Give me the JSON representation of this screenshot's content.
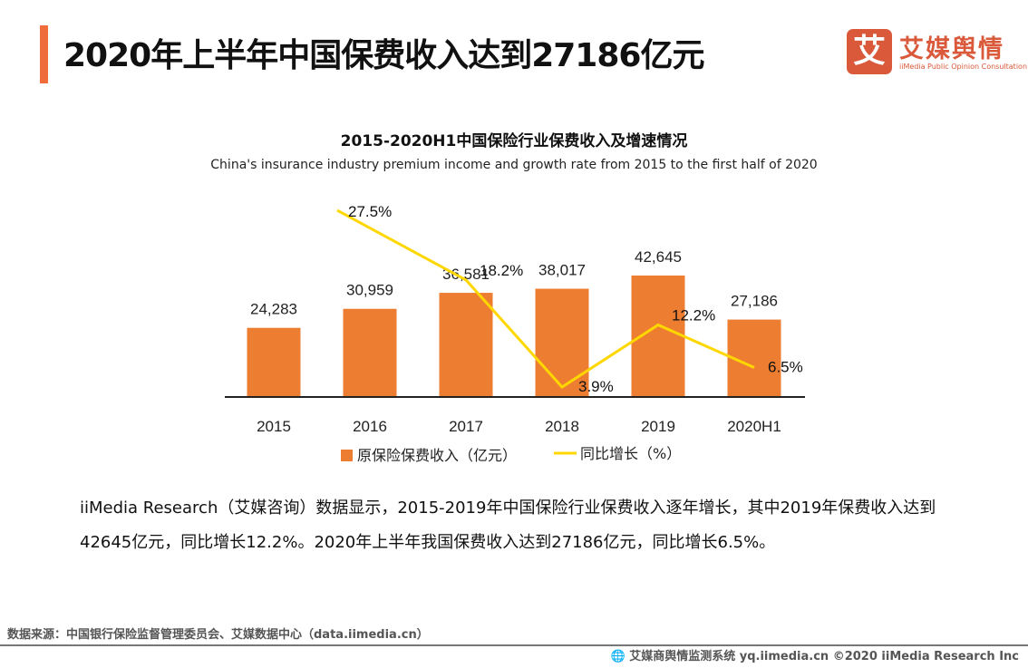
{
  "header": {
    "title": "2020年上半年中国保费收入达到27186亿元"
  },
  "logo": {
    "mark": "艾",
    "cn": "艾媒舆情",
    "en": "iiMedia Public Opinion Consultation"
  },
  "chart_data": {
    "type": "bar+line",
    "title": "2015-2020H1中国保险行业保费收入及增速情况",
    "subtitle": "China's insurance industry premium income and growth rate from 2015 to the first half of 2020",
    "categories": [
      "2015",
      "2016",
      "2017",
      "2018",
      "2019",
      "2020H1"
    ],
    "series": [
      {
        "name": "原保险保费收入（亿元）",
        "type": "bar",
        "color": "#ed7d31",
        "values": [
          24283,
          30959,
          36581,
          38017,
          42645,
          27186
        ],
        "labels": [
          "24,283",
          "30,959",
          "36,581",
          "38,017",
          "42,645",
          "27,186"
        ]
      },
      {
        "name": "同比增长（%）",
        "type": "line",
        "color": "#ffd700",
        "values": [
          null,
          27.5,
          18.2,
          3.9,
          12.2,
          6.5
        ],
        "labels": [
          "",
          "27.5%",
          "18.2%",
          "3.9%",
          "12.2%",
          "6.5%"
        ]
      }
    ],
    "legend": "bottom"
  },
  "description": "iiMedia Research（艾媒咨询）数据显示，2015-2019年中国保险行业保费收入逐年增长，其中2019年保费收入达到42645亿元，同比增长12.2%。2020年上半年我国保费收入达到27186亿元，同比增长6.5%。",
  "footer": {
    "source": "数据来源：中国银行保险监督管理委员会、艾媒数据中心（data.iimedia.cn）",
    "copyright": "艾媒商舆情监测系统 yq.iimedia.cn  ©2020  iiMedia Research  Inc"
  }
}
